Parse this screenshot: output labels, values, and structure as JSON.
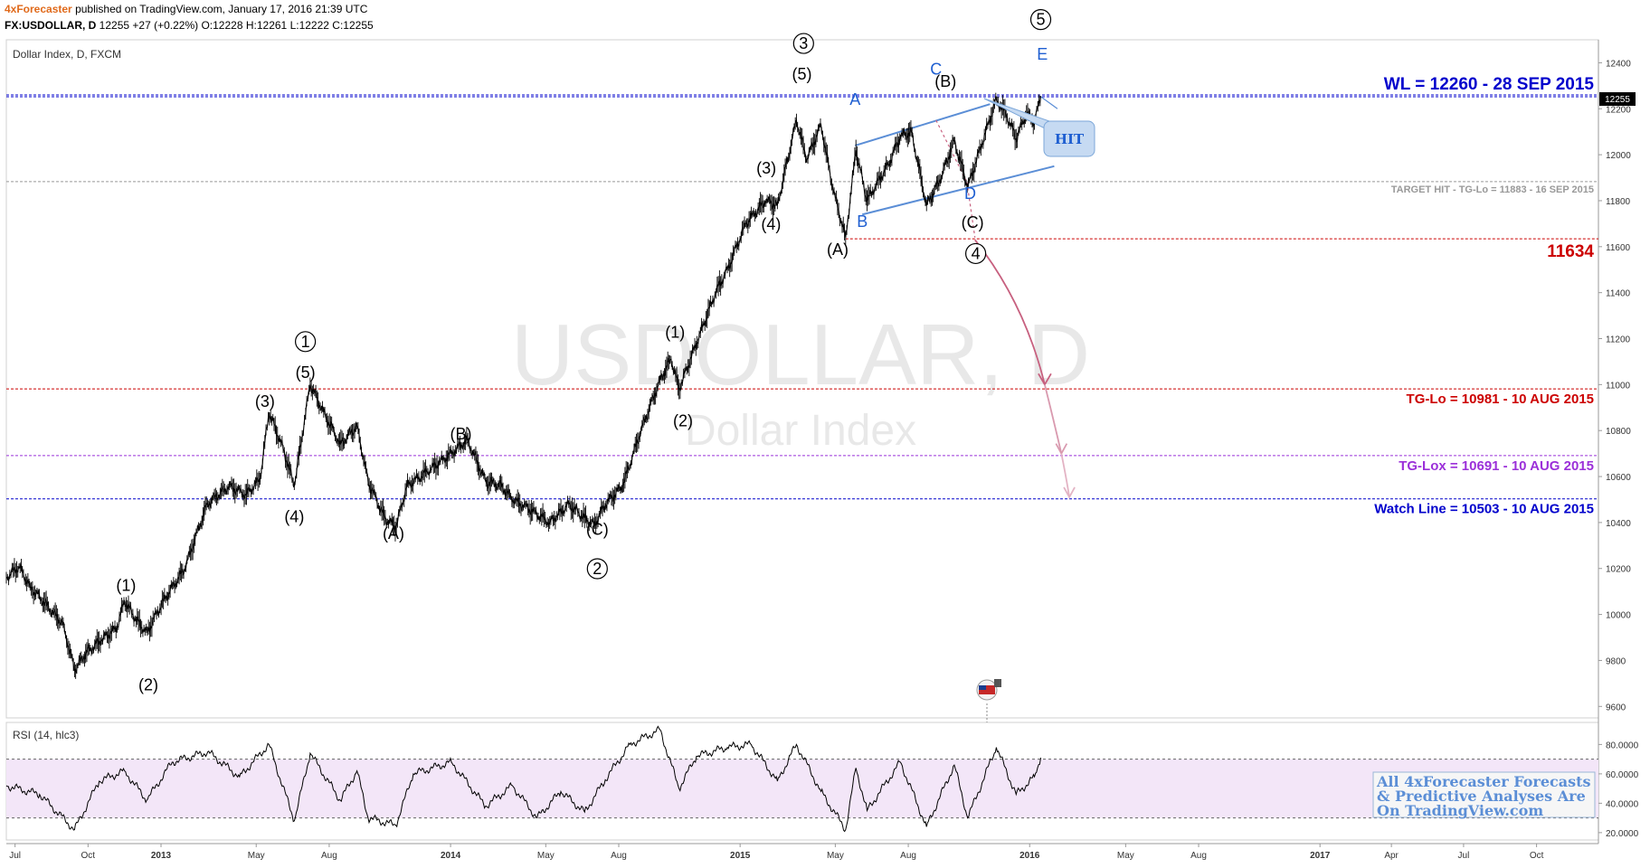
{
  "header": {
    "publisher": "4xForecaster",
    "published_text": "published on TradingView.com, January 17, 2016 21:39 UTC",
    "symbol": "FX:USDOLLAR, D",
    "last": "12255",
    "change": "+27 (+0.22%)",
    "open_label": "O:",
    "open": "12228",
    "high_label": "H:",
    "high": "12261",
    "low_label": "L:",
    "low": "12222",
    "close_label": "C:",
    "close": "12255"
  },
  "main_legend": "Dollar Index, D, FXCM",
  "watermark": {
    "line1": "USDOLLAR, D",
    "line2": "Dollar Index"
  },
  "price_badge": "12255",
  "rsi_legend": "RSI (14, hlc3)",
  "promo": {
    "line1": "All 4xForecaster Forecasts",
    "line2": "& Predictive Analyses Are",
    "line3": "On TradingView.com"
  },
  "hit_callout": "HIT",
  "colors": {
    "red": "#cc0000",
    "blue": "#0000cc",
    "purple": "#9b30d9",
    "gray": "#999999",
    "wave_blue": "#1f5fd1",
    "rsi_band": "#f3e6f8",
    "arrow": "#c7607f"
  },
  "chart_data": {
    "type": "line",
    "price_axis": {
      "ylim": [
        9550,
        12500
      ],
      "ticks": [
        9600,
        9800,
        10000,
        10200,
        10400,
        10600,
        10800,
        11000,
        11200,
        11400,
        11600,
        11800,
        12000,
        12200,
        12400
      ],
      "tick_labels": [
        "9600",
        "9800",
        "10000",
        "10200",
        "10400",
        "10600",
        "10800",
        "11000",
        "11200",
        "11400",
        "11600",
        "11800",
        "12000",
        "12200",
        "12400"
      ]
    },
    "rsi_axis": {
      "ylim": [
        15,
        95
      ],
      "ticks": [
        20,
        40,
        60,
        80
      ],
      "tick_labels": [
        "20.0000",
        "40.0000",
        "60.0000",
        "80.0000"
      ],
      "band": [
        30,
        70
      ]
    },
    "time_axis": {
      "xlim": [
        "2012-06-20",
        "2017-12-18"
      ],
      "ticks": [
        "2012-07-01",
        "2012-10-01",
        "2013-01-01",
        "2013-05-01",
        "2013-08-01",
        "2014-01-01",
        "2014-05-01",
        "2014-08-01",
        "2015-01-01",
        "2015-05-01",
        "2015-08-01",
        "2016-01-01",
        "2016-05-01",
        "2016-08-01",
        "2017-01-01",
        "2017-04-01",
        "2017-07-01",
        "2017-10-01"
      ],
      "tick_labels": [
        "Jul",
        "Oct",
        "2013",
        "May",
        "Aug",
        "2014",
        "May",
        "Aug",
        "2015",
        "May",
        "Aug",
        "2016",
        "May",
        "Aug",
        "2017",
        "Apr",
        "Jul",
        "Oct"
      ]
    },
    "series": [
      {
        "values": [
          [
            "2012-06-20",
            10160
          ],
          [
            "2012-07-06",
            10210
          ],
          [
            "2012-07-20",
            10120
          ],
          [
            "2012-08-10",
            10040
          ],
          [
            "2012-08-30",
            9960
          ],
          [
            "2012-09-14",
            9760
          ],
          [
            "2012-09-28",
            9830
          ],
          [
            "2012-10-18",
            9890
          ],
          [
            "2012-11-06",
            9940
          ],
          [
            "2012-11-16",
            10060
          ],
          [
            "2012-11-30",
            9980
          ],
          [
            "2012-12-14",
            9920
          ],
          [
            "2013-01-04",
            10060
          ],
          [
            "2013-01-31",
            10200
          ],
          [
            "2013-02-28",
            10480
          ],
          [
            "2013-03-28",
            10560
          ],
          [
            "2013-04-18",
            10520
          ],
          [
            "2013-05-06",
            10590
          ],
          [
            "2013-05-17",
            10880
          ],
          [
            "2013-06-04",
            10720
          ],
          [
            "2013-06-18",
            10560
          ],
          [
            "2013-07-08",
            11000
          ],
          [
            "2013-07-25",
            10880
          ],
          [
            "2013-08-15",
            10740
          ],
          [
            "2013-09-05",
            10820
          ],
          [
            "2013-09-19",
            10580
          ],
          [
            "2013-10-10",
            10420
          ],
          [
            "2013-10-24",
            10380
          ],
          [
            "2013-11-07",
            10560
          ],
          [
            "2013-12-02",
            10620
          ],
          [
            "2014-01-02",
            10700
          ],
          [
            "2014-01-22",
            10760
          ],
          [
            "2014-02-14",
            10580
          ],
          [
            "2014-03-06",
            10560
          ],
          [
            "2014-03-20",
            10500
          ],
          [
            "2014-04-10",
            10460
          ],
          [
            "2014-05-06",
            10400
          ],
          [
            "2014-05-30",
            10480
          ],
          [
            "2014-06-19",
            10420
          ],
          [
            "2014-07-01",
            10390
          ],
          [
            "2014-07-15",
            10480
          ],
          [
            "2014-08-06",
            10560
          ],
          [
            "2014-08-29",
            10800
          ],
          [
            "2014-09-22",
            11020
          ],
          [
            "2014-10-06",
            11110
          ],
          [
            "2014-10-16",
            10980
          ],
          [
            "2014-11-07",
            11180
          ],
          [
            "2014-12-01",
            11400
          ],
          [
            "2014-12-16",
            11500
          ],
          [
            "2015-01-08",
            11700
          ],
          [
            "2015-02-02",
            11800
          ],
          [
            "2015-02-17",
            11780
          ],
          [
            "2015-03-13",
            12150
          ],
          [
            "2015-03-26",
            11980
          ],
          [
            "2015-04-13",
            12130
          ],
          [
            "2015-04-28",
            11850
          ],
          [
            "2015-05-14",
            11640
          ],
          [
            "2015-05-27",
            12020
          ],
          [
            "2015-06-10",
            11800
          ],
          [
            "2015-07-07",
            11960
          ],
          [
            "2015-07-22",
            12080
          ],
          [
            "2015-08-05",
            12100
          ],
          [
            "2015-08-24",
            11780
          ],
          [
            "2015-09-10",
            11890
          ],
          [
            "2015-09-28",
            12060
          ],
          [
            "2015-10-15",
            11860
          ],
          [
            "2015-11-02",
            12050
          ],
          [
            "2015-11-20",
            12240
          ],
          [
            "2015-12-03",
            12170
          ],
          [
            "2015-12-15",
            12070
          ],
          [
            "2015-12-28",
            12180
          ],
          [
            "2016-01-07",
            12140
          ],
          [
            "2016-01-15",
            12255
          ]
        ]
      },
      {
        "values": [
          [
            "2012-06-20",
            52
          ],
          [
            "2012-08-01",
            46
          ],
          [
            "2012-09-14",
            22
          ],
          [
            "2012-10-15",
            55
          ],
          [
            "2012-11-16",
            62
          ],
          [
            "2012-12-14",
            42
          ],
          [
            "2013-01-15",
            68
          ],
          [
            "2013-03-01",
            75
          ],
          [
            "2013-04-10",
            58
          ],
          [
            "2013-05-17",
            80
          ],
          [
            "2013-06-18",
            28
          ],
          [
            "2013-07-08",
            74
          ],
          [
            "2013-08-15",
            42
          ],
          [
            "2013-09-05",
            62
          ],
          [
            "2013-09-19",
            30
          ],
          [
            "2013-10-24",
            25
          ],
          [
            "2013-11-15",
            60
          ],
          [
            "2014-01-02",
            68
          ],
          [
            "2014-02-14",
            38
          ],
          [
            "2014-03-20",
            52
          ],
          [
            "2014-04-20",
            30
          ],
          [
            "2014-05-20",
            48
          ],
          [
            "2014-06-19",
            34
          ],
          [
            "2014-07-15",
            56
          ],
          [
            "2014-08-15",
            80
          ],
          [
            "2014-09-22",
            90
          ],
          [
            "2014-10-16",
            50
          ],
          [
            "2014-11-07",
            72
          ],
          [
            "2014-12-16",
            78
          ],
          [
            "2015-01-15",
            80
          ],
          [
            "2015-02-17",
            55
          ],
          [
            "2015-03-13",
            80
          ],
          [
            "2015-04-13",
            48
          ],
          [
            "2015-05-14",
            22
          ],
          [
            "2015-05-27",
            64
          ],
          [
            "2015-06-10",
            35
          ],
          [
            "2015-07-22",
            68
          ],
          [
            "2015-08-24",
            24
          ],
          [
            "2015-09-28",
            66
          ],
          [
            "2015-10-15",
            30
          ],
          [
            "2015-11-20",
            78
          ],
          [
            "2015-12-15",
            46
          ],
          [
            "2016-01-07",
            58
          ],
          [
            "2016-01-15",
            71
          ]
        ]
      }
    ],
    "horizontal_levels": [
      {
        "y": 12260,
        "label": "WL = 12260 - 28 SEP 2015"
      },
      {
        "y": 11883,
        "label": "TARGET HIT - TG-Lo = 11883 - 16 SEP 2015"
      },
      {
        "y": 11634,
        "label": "11634"
      },
      {
        "y": 10981,
        "label": "TG-Lo = 10981 - 10 AUG 2015"
      },
      {
        "y": 10691,
        "label": "TG-Lox = 10691 - 10 AUG 2015"
      },
      {
        "y": 10503,
        "label": "Watch Line = 10503 - 10 AUG 2015"
      }
    ],
    "annotations": [
      {
        "text": "(1)",
        "x": "2012-11-18",
        "y": 10127
      },
      {
        "text": "(2)",
        "x": "2012-12-16",
        "y": 9693
      },
      {
        "text": "(3)",
        "x": "2013-05-12",
        "y": 10926
      },
      {
        "text": "(4)",
        "x": "2013-06-18",
        "y": 10425
      },
      {
        "text": "(5)",
        "x": "2013-07-02",
        "y": 11053
      },
      {
        "text": "1",
        "x": "2013-07-02",
        "y": 11187
      },
      {
        "text": "(A)",
        "x": "2013-10-21",
        "y": 10352
      },
      {
        "text": "(B)",
        "x": "2014-01-14",
        "y": 10785
      },
      {
        "text": "(C)",
        "x": "2014-07-05",
        "y": 10371
      },
      {
        "text": "2",
        "x": "2014-07-05",
        "y": 10199
      },
      {
        "text": "(1)",
        "x": "2014-10-11",
        "y": 11227
      },
      {
        "text": "(2)",
        "x": "2014-10-21",
        "y": 10843
      },
      {
        "text": "(3)",
        "x": "2015-02-03",
        "y": 11941
      },
      {
        "text": "(4)",
        "x": "2015-02-09",
        "y": 11698
      },
      {
        "text": "(5)",
        "x": "2015-03-20",
        "y": 12350
      },
      {
        "text": "3",
        "x": "2015-03-22",
        "y": 12484
      },
      {
        "text": "(A)",
        "x": "2015-05-04",
        "y": 11587
      },
      {
        "text": "(B)",
        "x": "2015-09-17",
        "y": 12320
      },
      {
        "text": "(C)",
        "x": "2015-10-21",
        "y": 11705
      },
      {
        "text": "4",
        "x": "2015-10-25",
        "y": 11570
      },
      {
        "text": "5",
        "x": "2016-01-15",
        "y": 12588
      },
      {
        "text": "A",
        "x": "2015-05-26",
        "y": 12240,
        "color": "blue"
      },
      {
        "text": "B",
        "x": "2015-06-04",
        "y": 11710,
        "color": "blue"
      },
      {
        "text": "C",
        "x": "2015-09-05",
        "y": 12372,
        "color": "blue"
      },
      {
        "text": "D",
        "x": "2015-10-18",
        "y": 11831,
        "color": "blue"
      },
      {
        "text": "E",
        "x": "2016-01-17",
        "y": 12438,
        "color": "blue"
      }
    ]
  }
}
